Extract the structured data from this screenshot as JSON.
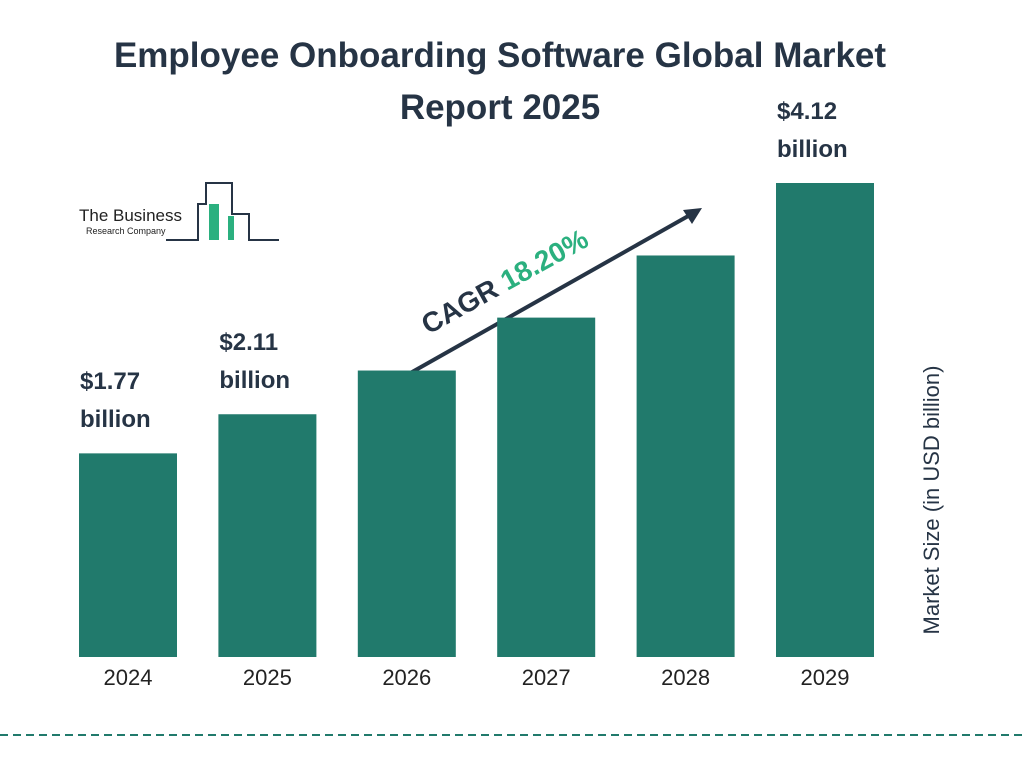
{
  "chart_data": {
    "type": "bar",
    "title": "Employee Onboarding Software Global Market Report 2025",
    "categories": [
      "2024",
      "2025",
      "2026",
      "2027",
      "2028",
      "2029"
    ],
    "values": [
      1.77,
      2.11,
      2.49,
      2.95,
      3.49,
      4.12
    ],
    "value_labels": [
      "$1.77 billion",
      "$2.11 billion",
      null,
      null,
      null,
      "$4.12 billion"
    ],
    "color": "#217a6c",
    "y_label": "Market Size (in USD billion)",
    "annotation": {
      "label": "CAGR",
      "value": "18.20%"
    }
  },
  "logo": {
    "line1": "The Business",
    "line2": "Research Company"
  }
}
